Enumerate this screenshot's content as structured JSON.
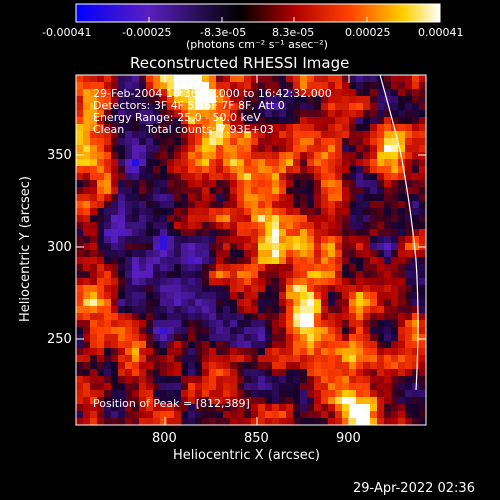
{
  "colorbar": {
    "tick_labels": [
      "-0.00041",
      "-0.00025",
      "-8.3e-05",
      "8.3e-05",
      "0.00025",
      "0.00041"
    ],
    "unit_label": "(photons cm⁻² s⁻¹ asec⁻²)",
    "colors": [
      "#0000ff",
      "#5a1fbf",
      "#000000",
      "#b00000",
      "#ff4000",
      "#ffd000",
      "#ffffff"
    ]
  },
  "plot": {
    "title": "Reconstructed RHESSI Image",
    "xlabel": "Heliocentric X (arcsec)",
    "ylabel": "Heliocentric Y (arcsec)",
    "x_ticks": [
      "800",
      "850",
      "900"
    ],
    "y_ticks": [
      "350",
      "300",
      "250"
    ],
    "xlim": [
      752,
      942
    ],
    "ylim": [
      202,
      392
    ]
  },
  "overlay": {
    "line1": "29-Feb-2004 16:36:32.000 to 16:42:32.000",
    "line2": "Detectors: 3F 4F 5F 6F 7F 8F, Att 0",
    "line3": "Energy Range: 25.0 - 50.0 keV",
    "line4_left": "Clean",
    "line4_right": "Total counts: 7.93E+03",
    "peak": "Position of Peak = [812,389]"
  },
  "footer": {
    "timestamp": "29-Apr-2022 02:36"
  }
}
